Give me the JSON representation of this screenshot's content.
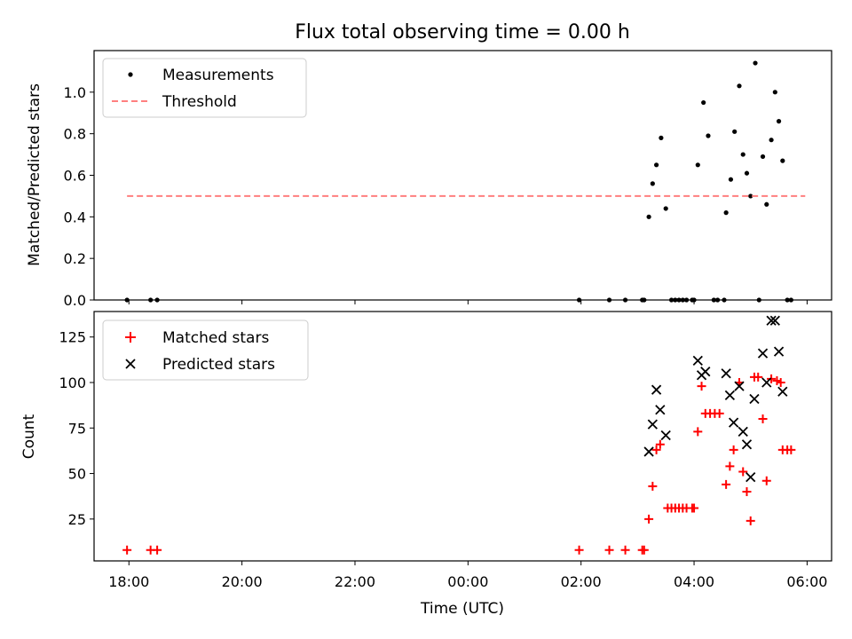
{
  "figure": {
    "title": "Flux total observing time = 0.00 h",
    "xlabel": "Time (UTC)"
  },
  "chart_data": [
    {
      "type": "scatter",
      "ylabel": "Matched/Predicted stars",
      "xlim": [
        "17:23",
        "06:26"
      ],
      "ylim": [
        0.0,
        1.2
      ],
      "y_ticks": [
        "0.0",
        "0.2",
        "0.4",
        "0.6",
        "0.8",
        "1.0"
      ],
      "x_ticks": [
        "18:00",
        "20:00",
        "22:00",
        "00:00",
        "02:00",
        "04:00",
        "06:00"
      ],
      "legend": "top-left",
      "series": [
        {
          "name": "Measurements",
          "marker": "dot",
          "color": "#000000",
          "points": [
            {
              "x": "17:58",
              "y": 0.0
            },
            {
              "x": "18:23",
              "y": 0.0
            },
            {
              "x": "18:30",
              "y": 0.0
            },
            {
              "x": "01:58",
              "y": 0.0
            },
            {
              "x": "02:30",
              "y": 0.0
            },
            {
              "x": "02:47",
              "y": 0.0
            },
            {
              "x": "03:05",
              "y": 0.0
            },
            {
              "x": "03:07",
              "y": 0.0
            },
            {
              "x": "03:12",
              "y": 0.4
            },
            {
              "x": "03:16",
              "y": 0.56
            },
            {
              "x": "03:20",
              "y": 0.65
            },
            {
              "x": "03:25",
              "y": 0.78
            },
            {
              "x": "03:30",
              "y": 0.44
            },
            {
              "x": "03:36",
              "y": 0.0
            },
            {
              "x": "03:40",
              "y": 0.0
            },
            {
              "x": "03:44",
              "y": 0.0
            },
            {
              "x": "03:48",
              "y": 0.0
            },
            {
              "x": "03:52",
              "y": 0.0
            },
            {
              "x": "03:58",
              "y": 0.0
            },
            {
              "x": "04:00",
              "y": 0.0
            },
            {
              "x": "04:04",
              "y": 0.65
            },
            {
              "x": "04:10",
              "y": 0.95
            },
            {
              "x": "04:15",
              "y": 0.79
            },
            {
              "x": "04:21",
              "y": 0.0
            },
            {
              "x": "04:25",
              "y": 0.0
            },
            {
              "x": "04:32",
              "y": 0.0
            },
            {
              "x": "04:34",
              "y": 0.42
            },
            {
              "x": "04:39",
              "y": 0.58
            },
            {
              "x": "04:43",
              "y": 0.81
            },
            {
              "x": "04:48",
              "y": 1.03
            },
            {
              "x": "04:52",
              "y": 0.7
            },
            {
              "x": "04:56",
              "y": 0.61
            },
            {
              "x": "05:00",
              "y": 0.5
            },
            {
              "x": "05:05",
              "y": 1.14
            },
            {
              "x": "05:09",
              "y": 0.0
            },
            {
              "x": "05:13",
              "y": 0.69
            },
            {
              "x": "05:17",
              "y": 0.46
            },
            {
              "x": "05:22",
              "y": 0.77
            },
            {
              "x": "05:26",
              "y": 1.0
            },
            {
              "x": "05:30",
              "y": 0.86
            },
            {
              "x": "05:34",
              "y": 0.67
            },
            {
              "x": "05:39",
              "y": 0.0
            },
            {
              "x": "05:43",
              "y": 0.0
            }
          ]
        },
        {
          "name": "Threshold",
          "marker": "dashed-line",
          "color": "#ff7f7f",
          "points": [
            {
              "x": "17:58",
              "y": 0.5
            },
            {
              "x": "05:58",
              "y": 0.5
            }
          ]
        }
      ]
    },
    {
      "type": "scatter",
      "ylabel": "Count",
      "xlim": [
        "17:23",
        "06:26"
      ],
      "ylim": [
        2,
        139
      ],
      "y_ticks": [
        "25",
        "50",
        "75",
        "100",
        "125"
      ],
      "x_ticks": [
        "18:00",
        "20:00",
        "22:00",
        "00:00",
        "02:00",
        "04:00",
        "06:00"
      ],
      "legend": "top-left",
      "series": [
        {
          "name": "Matched stars",
          "marker": "plus",
          "color": "#ff0000",
          "points": [
            {
              "x": "17:58",
              "y": 8
            },
            {
              "x": "18:23",
              "y": 8
            },
            {
              "x": "18:30",
              "y": 8
            },
            {
              "x": "01:58",
              "y": 8
            },
            {
              "x": "02:30",
              "y": 8
            },
            {
              "x": "02:47",
              "y": 8
            },
            {
              "x": "03:05",
              "y": 8
            },
            {
              "x": "03:07",
              "y": 8
            },
            {
              "x": "03:12",
              "y": 25
            },
            {
              "x": "03:16",
              "y": 43
            },
            {
              "x": "03:20",
              "y": 63
            },
            {
              "x": "03:24",
              "y": 66
            },
            {
              "x": "03:32",
              "y": 31
            },
            {
              "x": "03:36",
              "y": 31
            },
            {
              "x": "03:40",
              "y": 31
            },
            {
              "x": "03:44",
              "y": 31
            },
            {
              "x": "03:48",
              "y": 31
            },
            {
              "x": "03:52",
              "y": 31
            },
            {
              "x": "03:58",
              "y": 31
            },
            {
              "x": "04:00",
              "y": 31
            },
            {
              "x": "04:04",
              "y": 73
            },
            {
              "x": "04:08",
              "y": 98
            },
            {
              "x": "04:12",
              "y": 83
            },
            {
              "x": "04:17",
              "y": 83
            },
            {
              "x": "04:22",
              "y": 83
            },
            {
              "x": "04:27",
              "y": 83
            },
            {
              "x": "04:34",
              "y": 44
            },
            {
              "x": "04:38",
              "y": 54
            },
            {
              "x": "04:42",
              "y": 63
            },
            {
              "x": "04:48",
              "y": 100
            },
            {
              "x": "04:52",
              "y": 51
            },
            {
              "x": "04:56",
              "y": 40
            },
            {
              "x": "05:00",
              "y": 24
            },
            {
              "x": "05:04",
              "y": 103
            },
            {
              "x": "05:08",
              "y": 103
            },
            {
              "x": "05:13",
              "y": 80
            },
            {
              "x": "05:17",
              "y": 46
            },
            {
              "x": "05:22",
              "y": 102
            },
            {
              "x": "05:28",
              "y": 101
            },
            {
              "x": "05:32",
              "y": 100
            },
            {
              "x": "05:34",
              "y": 63
            },
            {
              "x": "05:39",
              "y": 63
            },
            {
              "x": "05:43",
              "y": 63
            }
          ]
        },
        {
          "name": "Predicted stars",
          "marker": "x",
          "color": "#000000",
          "points": [
            {
              "x": "03:12",
              "y": 62
            },
            {
              "x": "03:16",
              "y": 77
            },
            {
              "x": "03:20",
              "y": 96
            },
            {
              "x": "03:24",
              "y": 85
            },
            {
              "x": "03:30",
              "y": 71
            },
            {
              "x": "04:04",
              "y": 112
            },
            {
              "x": "04:08",
              "y": 104
            },
            {
              "x": "04:12",
              "y": 106
            },
            {
              "x": "04:34",
              "y": 105
            },
            {
              "x": "04:38",
              "y": 93
            },
            {
              "x": "04:42",
              "y": 78
            },
            {
              "x": "04:48",
              "y": 98
            },
            {
              "x": "04:52",
              "y": 73
            },
            {
              "x": "04:56",
              "y": 66
            },
            {
              "x": "05:00",
              "y": 48
            },
            {
              "x": "05:04",
              "y": 91
            },
            {
              "x": "05:13",
              "y": 116
            },
            {
              "x": "05:17",
              "y": 100
            },
            {
              "x": "05:22",
              "y": 134
            },
            {
              "x": "05:26",
              "y": 134
            },
            {
              "x": "05:30",
              "y": 117
            },
            {
              "x": "05:34",
              "y": 95
            }
          ]
        }
      ]
    }
  ]
}
